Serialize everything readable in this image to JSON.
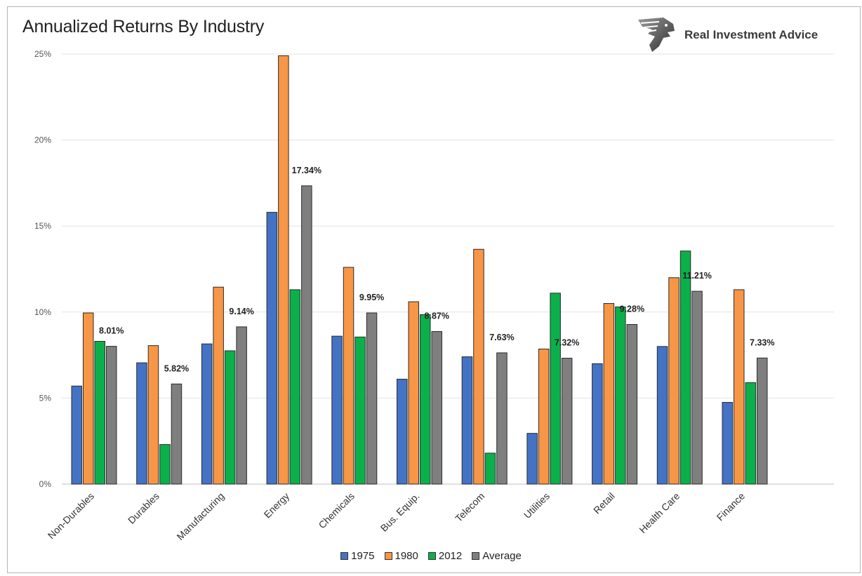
{
  "brand": {
    "name": "Real Investment Advice",
    "logo_icon": "eagle-head-icon"
  },
  "chart_data": {
    "type": "bar",
    "title": "Annualized Returns By Industry",
    "xlabel": "",
    "ylabel": "",
    "ylim": [
      0,
      25
    ],
    "yticks": [
      "0%",
      "5%",
      "10%",
      "15%",
      "20%",
      "25%"
    ],
    "ytick_values": [
      0,
      5,
      10,
      15,
      20,
      25
    ],
    "grid": true,
    "legend_position": "bottom",
    "categories": [
      "Non-Durables",
      "Durables",
      "Manufacturing",
      "Energy",
      "Chemicals",
      "Bus. Equip.",
      "Telecom",
      "Utilities",
      "Retail",
      "Health Care",
      "Finance"
    ],
    "series": [
      {
        "name": "1975",
        "color": "#4472c4",
        "values": [
          5.7,
          7.05,
          8.15,
          15.8,
          8.6,
          6.1,
          7.4,
          2.95,
          7.0,
          8.0,
          4.75
        ]
      },
      {
        "name": "1980",
        "color": "#f79646",
        "values": [
          9.95,
          8.05,
          11.45,
          24.9,
          12.6,
          10.6,
          13.65,
          7.85,
          10.5,
          12.0,
          11.3
        ]
      },
      {
        "name": "2012",
        "color": "#0bb04b",
        "values": [
          8.3,
          2.3,
          7.75,
          11.3,
          8.55,
          9.85,
          1.8,
          11.1,
          10.3,
          13.55,
          5.9
        ]
      },
      {
        "name": "Average",
        "color": "#7f7f7f",
        "values": [
          8.01,
          5.82,
          9.14,
          17.34,
          9.95,
          8.87,
          7.63,
          7.32,
          9.28,
          11.21,
          7.33
        ]
      }
    ],
    "data_labels": [
      "8.01%",
      "5.82%",
      "9.14%",
      "17.34%",
      "9.95%",
      "8.87%",
      "7.63%",
      "7.32%",
      "9.28%",
      "11.21%",
      "7.33%"
    ]
  }
}
